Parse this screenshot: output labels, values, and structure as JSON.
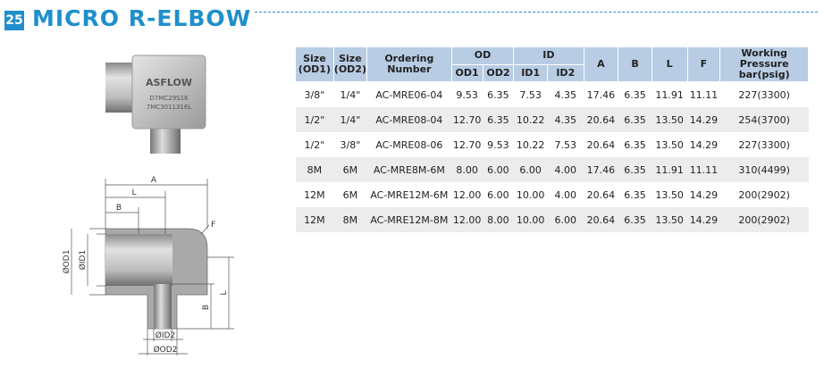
{
  "header": {
    "number": "25",
    "title": "MICRO R-ELBOW"
  },
  "product_photo": {
    "brand": "ASFLOW",
    "codes": [
      "D7MC29S16",
      "7MC3011316L"
    ]
  },
  "diagram": {
    "labels": [
      "A",
      "L",
      "B",
      "F",
      "ØOD1",
      "ØID1",
      "L",
      "B",
      "ØID2",
      "ØOD2"
    ]
  },
  "table": {
    "header_top": [
      "Size\n(OD1)",
      "Size\n(OD2)",
      "Ordering\nNumber",
      "OD",
      "ID",
      "A",
      "B",
      "L",
      "F",
      "Working Pressure\nbar(psig)"
    ],
    "header_sub": [
      "OD1",
      "OD2",
      "ID1",
      "ID2"
    ],
    "rows": [
      [
        "3/8\"",
        "1/4\"",
        "AC-MRE06-04",
        "9.53",
        "6.35",
        "7.53",
        "4.35",
        "17.46",
        "6.35",
        "11.91",
        "11.11",
        "227(3300)"
      ],
      [
        "1/2\"",
        "1/4\"",
        "AC-MRE08-04",
        "12.70",
        "6.35",
        "10.22",
        "4.35",
        "20.64",
        "6.35",
        "13.50",
        "14.29",
        "254(3700)"
      ],
      [
        "1/2\"",
        "3/8\"",
        "AC-MRE08-06",
        "12.70",
        "9.53",
        "10.22",
        "7.53",
        "20.64",
        "6.35",
        "13.50",
        "14.29",
        "227(3300)"
      ],
      [
        "8M",
        "6M",
        "AC-MRE8M-6M",
        "8.00",
        "6.00",
        "6.00",
        "4.00",
        "17.46",
        "6.35",
        "11.91",
        "11.11",
        "310(4499)"
      ],
      [
        "12M",
        "6M",
        "AC-MRE12M-6M",
        "12.00",
        "6.00",
        "10.00",
        "4.00",
        "20.64",
        "6.35",
        "13.50",
        "14.29",
        "200(2902)"
      ],
      [
        "12M",
        "8M",
        "AC-MRE12M-8M",
        "12.00",
        "8.00",
        "10.00",
        "6.00",
        "20.64",
        "6.35",
        "13.50",
        "14.29",
        "200(2902)"
      ]
    ]
  }
}
